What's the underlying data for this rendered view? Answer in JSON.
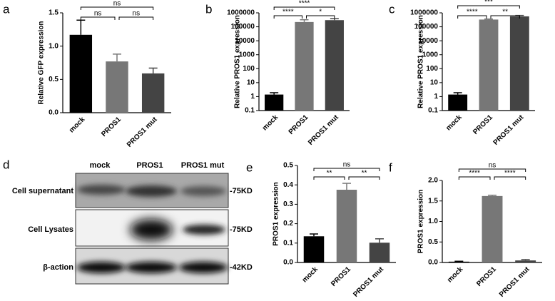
{
  "chart_data": [
    {
      "type": "bar",
      "label": "a",
      "ylabel": "Relative GFP expression",
      "categories": [
        "mock",
        "PROS1",
        "PROS1 mut"
      ],
      "values": [
        1.17,
        0.77,
        0.59
      ],
      "errors": [
        0.22,
        0.11,
        0.08
      ],
      "colors": [
        "#000000",
        "#777777",
        "#444444"
      ],
      "ylim": [
        0,
        1.5
      ],
      "yticks": [
        {
          "value": 0,
          "label": "0.0"
        },
        0.5,
        {
          "value": 1,
          "label": "1.0"
        },
        1.5
      ],
      "annotations": [
        "ns",
        "ns",
        "ns"
      ]
    },
    {
      "type": "bar",
      "label": "b",
      "ylabel": "Relative PROS1 expression",
      "categories": [
        "mock",
        "PROS1",
        "PROS1 mut"
      ],
      "values": [
        1.4,
        220000,
        300000
      ],
      "errors": [
        0.5,
        100000,
        80000
      ],
      "colors": [
        "#000000",
        "#777777",
        "#444444"
      ],
      "log_scale": true,
      "ylim": [
        0.1,
        1000000
      ],
      "yticks": [
        0.1,
        1,
        10,
        100,
        1000,
        10000,
        100000,
        1000000
      ],
      "annotations": [
        "****",
        "****",
        "*"
      ]
    },
    {
      "type": "bar",
      "label": "c",
      "ylabel": "Relative PROS1 expression",
      "categories": [
        "mock",
        "PROS1",
        "PROS1 mut"
      ],
      "values": [
        1.4,
        330000,
        560000
      ],
      "errors": [
        0.5,
        30000,
        90000
      ],
      "colors": [
        "#000000",
        "#777777",
        "#444444"
      ],
      "log_scale": true,
      "ylim": [
        0.1,
        1000000
      ],
      "yticks": [
        0.1,
        1,
        10,
        100,
        1000,
        10000,
        100000,
        1000000
      ],
      "annotations": [
        "***",
        "****",
        "**"
      ]
    },
    {
      "type": "bar",
      "label": "e",
      "ylabel": "PROS1 expression",
      "categories": [
        "mock",
        "PROS1",
        "PROS1 mut"
      ],
      "values": [
        0.135,
        0.375,
        0.102
      ],
      "errors": [
        0.012,
        0.033,
        0.02
      ],
      "colors": [
        "#000000",
        "#777777",
        "#444444"
      ],
      "ylim": [
        0,
        0.5
      ],
      "yticks": [
        {
          "value": 0,
          "label": "0.0"
        },
        0.1,
        0.2,
        0.3,
        0.4,
        0.5
      ],
      "annotations": [
        "ns",
        "**",
        "**"
      ]
    },
    {
      "type": "bar",
      "label": "f",
      "ylabel": "PROS1 expression",
      "categories": [
        "mock",
        "PROS1",
        "PROS1 mut"
      ],
      "values": [
        0.02,
        1.62,
        0.05
      ],
      "errors": [
        0.01,
        0.02,
        0.02
      ],
      "colors": [
        "#000000",
        "#777777",
        "#444444"
      ],
      "ylim": [
        0,
        2
      ],
      "yticks": [
        {
          "value": 0,
          "label": "0.0"
        },
        0.5,
        {
          "value": 1,
          "label": "1.0"
        },
        1.5,
        {
          "value": 2,
          "label": "2.0"
        }
      ],
      "annotations": [
        "ns",
        "****",
        "****"
      ]
    }
  ],
  "blot": {
    "label": "d",
    "lanes": [
      "mock",
      "PROS1",
      "PROS1 mut"
    ],
    "rows": [
      {
        "name": "Cell supernatant",
        "size": "-75KD"
      },
      {
        "name": "Cell Lysates",
        "size": "-75KD"
      },
      {
        "name": "β-action",
        "size": "-42KD"
      }
    ]
  }
}
